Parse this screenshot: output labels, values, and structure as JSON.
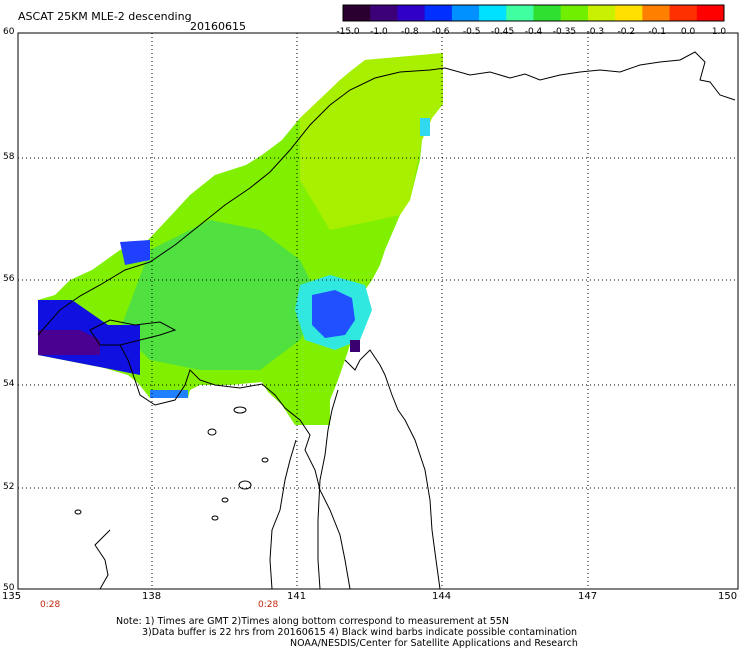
{
  "title": "ASCAT 25KM MLE-2 descending",
  "date": "20160615",
  "lat_labels": [
    "60",
    "58",
    "56",
    "54",
    "52",
    "50"
  ],
  "lon_labels": [
    "135",
    "138",
    "141",
    "144",
    "147",
    "150"
  ],
  "time_labels": [
    "0:28",
    "0:28"
  ],
  "colorbar": {
    "labels": [
      "-15.0",
      "-1.0",
      "-0.8",
      "-0.6",
      "-0.5",
      "-0.45",
      "-0.4",
      "-0.35",
      "-0.3",
      "-0.2",
      "-0.1",
      "0.0",
      "1.0"
    ],
    "colors": [
      "#2a0030",
      "#3c0078",
      "#3000c8",
      "#0030ff",
      "#0090ff",
      "#00e0ff",
      "#40ffa0",
      "#30e030",
      "#70f000",
      "#c8f000",
      "#ffe000",
      "#ff8000",
      "#ff3000",
      "#ff0000"
    ]
  },
  "notes": [
    "Note: 1) Times are GMT 2)Times along bottom correspond to measurement at 55N",
    "3)Data buffer is 22 hrs from 20160615 4) Black wind barbs indicate possible contamination",
    "NOAA/NESDIS/Center for Satellite Applications and Research"
  ],
  "map_extent": {
    "lon": [
      135,
      150
    ],
    "lat": [
      50,
      60
    ]
  }
}
